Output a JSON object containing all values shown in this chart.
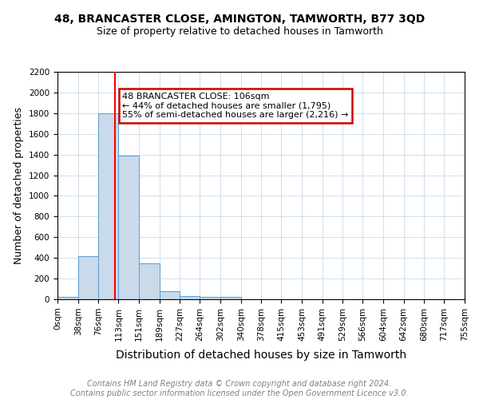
{
  "title": "48, BRANCASTER CLOSE, AMINGTON, TAMWORTH, B77 3QD",
  "subtitle": "Size of property relative to detached houses in Tamworth",
  "xlabel": "Distribution of detached houses by size in Tamworth",
  "ylabel": "Number of detached properties",
  "bin_edges": [
    0,
    38,
    76,
    113,
    151,
    189,
    227,
    264,
    302,
    340,
    378,
    415,
    453,
    491,
    529,
    566,
    604,
    642,
    680,
    717,
    755
  ],
  "bar_heights": [
    20,
    420,
    1800,
    1390,
    350,
    80,
    30,
    20,
    20,
    0,
    0,
    0,
    0,
    0,
    0,
    0,
    0,
    0,
    0,
    0
  ],
  "bar_color": "#c9daea",
  "bar_edge_color": "#5b9bd5",
  "ylim": [
    0,
    2200
  ],
  "red_line_x": 106,
  "annotation_text": "48 BRANCASTER CLOSE: 106sqm\n← 44% of detached houses are smaller (1,795)\n55% of semi-detached houses are larger (2,216) →",
  "annotation_box_color": "#ffffff",
  "annotation_border_color": "#cc0000",
  "footer_line1": "Contains HM Land Registry data © Crown copyright and database right 2024.",
  "footer_line2": "Contains public sector information licensed under the Open Government Licence v3.0.",
  "background_color": "#ffffff",
  "grid_color": "#c9d9ea",
  "title_fontsize": 10,
  "subtitle_fontsize": 9,
  "xlabel_fontsize": 10,
  "ylabel_fontsize": 9,
  "tick_fontsize": 7.5,
  "footer_fontsize": 7,
  "annotation_fontsize": 8
}
